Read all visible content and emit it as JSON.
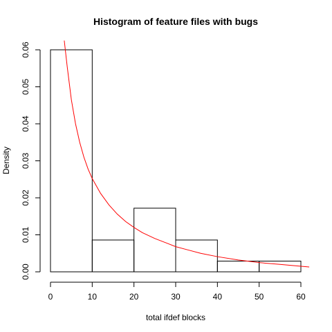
{
  "chart_data": {
    "type": "bar",
    "title": "Histogram of feature files with bugs",
    "xlabel": "total ifdef blocks",
    "ylabel": "Density",
    "xlim": [
      0,
      60
    ],
    "ylim": [
      0,
      0.06
    ],
    "x_ticks": [
      "0",
      "10",
      "20",
      "30",
      "40",
      "50",
      "60"
    ],
    "y_ticks": [
      "0.00",
      "0.01",
      "0.02",
      "0.03",
      "0.04",
      "0.05",
      "0.06"
    ],
    "bins": [
      {
        "start": 0,
        "end": 10,
        "density": 0.06
      },
      {
        "start": 10,
        "end": 20,
        "density": 0.0086
      },
      {
        "start": 20,
        "end": 30,
        "density": 0.0172
      },
      {
        "start": 30,
        "end": 40,
        "density": 0.0086
      },
      {
        "start": 40,
        "end": 50,
        "density": 0.0029
      },
      {
        "start": 50,
        "end": 60,
        "density": 0.0029
      }
    ],
    "curve": {
      "color": "#ff0000",
      "points": [
        [
          3.3,
          0.0625
        ],
        [
          4,
          0.0555
        ],
        [
          5,
          0.0465
        ],
        [
          6,
          0.04
        ],
        [
          7,
          0.035
        ],
        [
          8,
          0.031
        ],
        [
          9,
          0.0278
        ],
        [
          10,
          0.0252
        ],
        [
          12,
          0.0212
        ],
        [
          14,
          0.0181
        ],
        [
          16,
          0.0156
        ],
        [
          18,
          0.0136
        ],
        [
          20,
          0.012
        ],
        [
          22,
          0.0106
        ],
        [
          25,
          0.009
        ],
        [
          28,
          0.0077
        ],
        [
          30,
          0.0068
        ],
        [
          33,
          0.0059
        ],
        [
          36,
          0.005
        ],
        [
          40,
          0.0041
        ],
        [
          45,
          0.0032
        ],
        [
          50,
          0.0025
        ],
        [
          55,
          0.002
        ],
        [
          58,
          0.0017
        ],
        [
          62,
          0.0013
        ]
      ]
    },
    "grid": false,
    "legend": "none"
  }
}
